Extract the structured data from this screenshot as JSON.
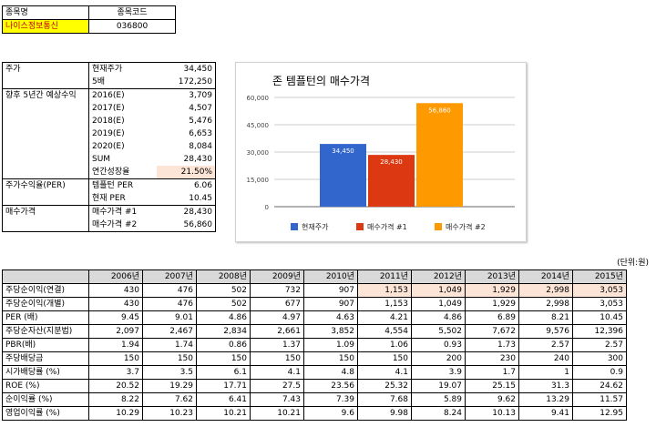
{
  "top": {
    "header": [
      "종목명",
      "종목코드"
    ],
    "values": [
      "나이스정보통신",
      "036800"
    ]
  },
  "summary": {
    "price_label": "주가",
    "rows_price": [
      {
        "label": "현재주가",
        "value": "34,450"
      },
      {
        "label": "5배",
        "value": "172,250"
      }
    ],
    "eps_label": "향후 5년간 예상수익",
    "rows_eps": [
      {
        "label": "2016(E)",
        "value": "3,709"
      },
      {
        "label": "2017(E)",
        "value": "4,507"
      },
      {
        "label": "2018(E)",
        "value": "5,476"
      },
      {
        "label": "2019(E)",
        "value": "6,653"
      },
      {
        "label": "2020(E)",
        "value": "8,084"
      },
      {
        "label": "SUM",
        "value": "28,430"
      },
      {
        "label": "연간성장율",
        "value": "21.50%"
      }
    ],
    "per_label": "주가수익율(PER)",
    "rows_per": [
      {
        "label": "템플턴 PER",
        "value": "6.06"
      },
      {
        "label": "현재 PER",
        "value": "10.45"
      }
    ],
    "buy_label": "매수가격",
    "rows_buy": [
      {
        "label": "매수가격 #1",
        "value": "28,430"
      },
      {
        "label": "매수가격 #2",
        "value": "56,860"
      }
    ]
  },
  "chart_data": {
    "type": "bar",
    "title": "존 템플턴의 매수가격",
    "categories": [
      "현재주가",
      "매수가격 #1",
      "매수가격 #2"
    ],
    "values": [
      34450,
      28430,
      56860
    ],
    "value_labels": [
      "34,450",
      "28,430",
      "56,860"
    ],
    "colors": [
      "#3366cc",
      "#dc3912",
      "#ff9900"
    ],
    "ylim": [
      0,
      60000
    ],
    "yticks": [
      0,
      15000,
      30000,
      45000,
      60000
    ],
    "ytick_labels": [
      "0",
      "15,000",
      "30,000",
      "45,000",
      "60,000"
    ],
    "legend": "bottom",
    "grid": true
  },
  "history": {
    "unit": "(단위:원)",
    "years": [
      "2006년",
      "2007년",
      "2008년",
      "2009년",
      "2010년",
      "2011년",
      "2012년",
      "2013년",
      "2014년",
      "2015년"
    ],
    "rows": [
      {
        "label": "주당순이익(연결)",
        "values": [
          "430",
          "476",
          "502",
          "732",
          "907",
          "1,153",
          "1,049",
          "1,929",
          "2,998",
          "3,053"
        ]
      },
      {
        "label": "주당순이익(개별)",
        "values": [
          "430",
          "476",
          "502",
          "677",
          "907",
          "1,153",
          "1,049",
          "1,929",
          "2,998",
          "3,053"
        ]
      },
      {
        "label": "PER (배)",
        "values": [
          "9.45",
          "9.01",
          "4.86",
          "4.97",
          "4.63",
          "4.21",
          "4.86",
          "6.89",
          "8.21",
          "10.45"
        ]
      },
      {
        "label": "주당순자산(지분법)",
        "values": [
          "2,097",
          "2,467",
          "2,834",
          "2,661",
          "3,852",
          "4,554",
          "5,502",
          "7,672",
          "9,576",
          "12,396"
        ]
      },
      {
        "label": "PBR(배)",
        "values": [
          "1.94",
          "1.74",
          "0.86",
          "1.37",
          "1.09",
          "1.06",
          "0.93",
          "1.73",
          "2.57",
          "2.57"
        ]
      },
      {
        "label": "주당배당금",
        "values": [
          "150",
          "150",
          "150",
          "150",
          "150",
          "150",
          "200",
          "230",
          "240",
          "300"
        ]
      },
      {
        "label": "시가배당률 (%)",
        "values": [
          "3.7",
          "3.5",
          "6.1",
          "4.1",
          "4.8",
          "4.1",
          "3.9",
          "1.7",
          "1",
          "0.9"
        ]
      },
      {
        "label": "ROE (%)",
        "values": [
          "20.52",
          "19.29",
          "17.71",
          "27.5",
          "23.56",
          "25.32",
          "19.07",
          "25.15",
          "31.3",
          "24.62"
        ]
      },
      {
        "label": "순이익률 (%)",
        "values": [
          "8.22",
          "7.62",
          "6.41",
          "7.43",
          "7.39",
          "7.68",
          "5.89",
          "9.62",
          "13.29",
          "11.57"
        ]
      },
      {
        "label": "영업이익률 (%)",
        "values": [
          "10.29",
          "10.23",
          "10.21",
          "10.21",
          "9.6",
          "9.98",
          "8.24",
          "10.13",
          "9.41",
          "12.95"
        ]
      }
    ]
  }
}
